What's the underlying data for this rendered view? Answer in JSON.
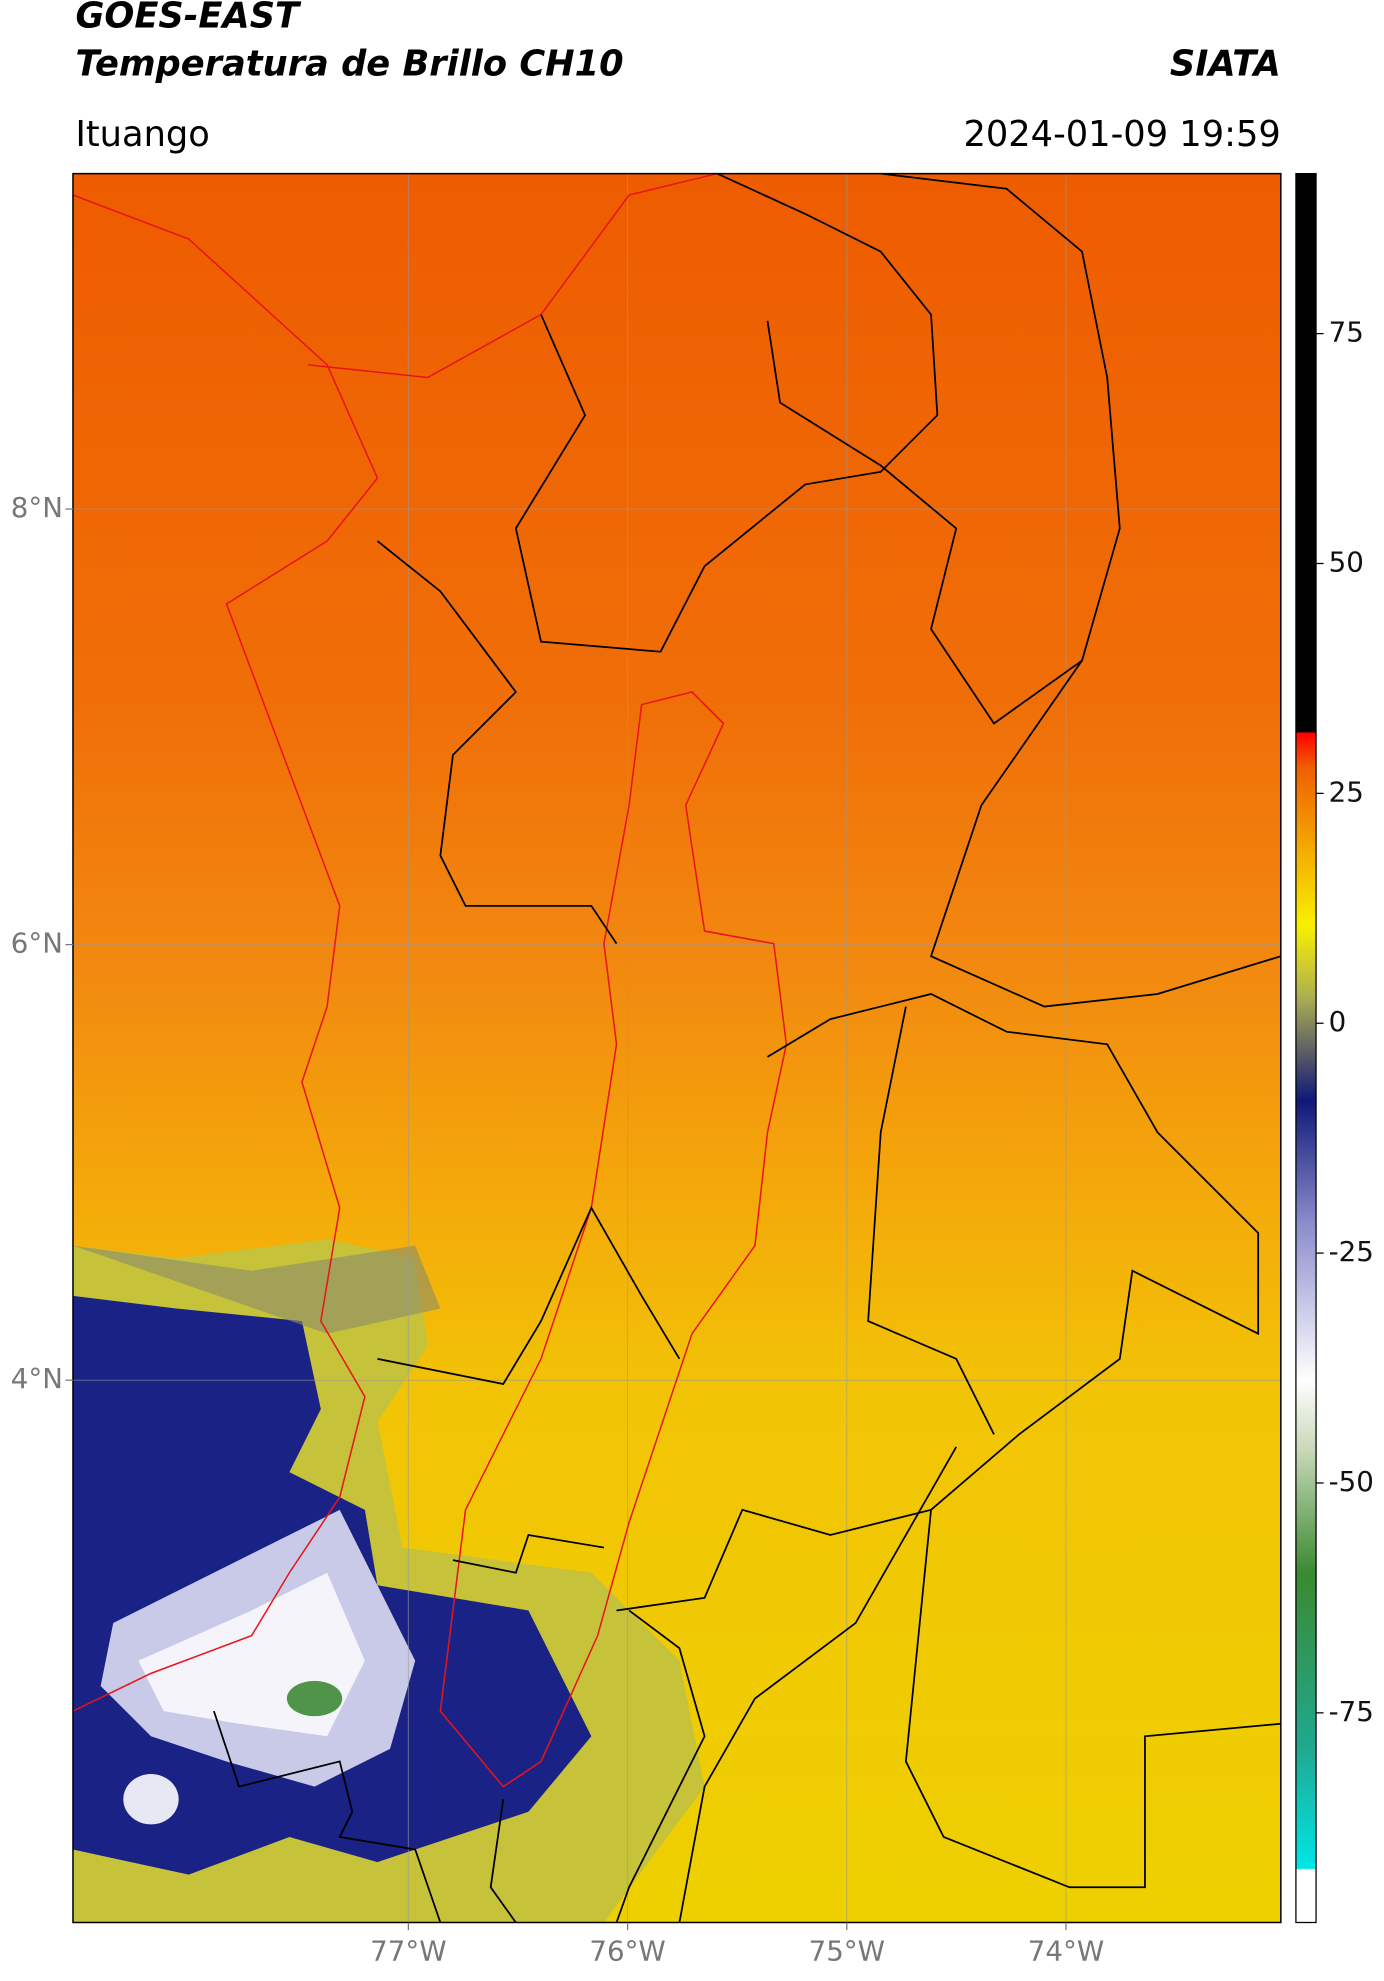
{
  "header": {
    "title": "GOES-EAST",
    "subtitle": "Temperatura de Brillo CH10",
    "source": "SIATA",
    "location": "Ituango",
    "datetime": "2024-01-09 19:59"
  },
  "map": {
    "lat_lim": [
      1.51,
      9.54
    ],
    "lon_lim": [
      -78.53,
      -73.02
    ],
    "lat_ticks": [
      {
        "value": 8,
        "label": "8°N"
      },
      {
        "value": 6,
        "label": "6°N"
      },
      {
        "value": 4,
        "label": "4°N"
      }
    ],
    "lon_ticks": [
      {
        "value": -77,
        "label": "77°W"
      },
      {
        "value": -76,
        "label": "76°W"
      },
      {
        "value": -75,
        "label": "75°W"
      },
      {
        "value": -74,
        "label": "74°W"
      }
    ]
  },
  "colorbar": {
    "lim": [
      -97.8,
      92.4
    ],
    "ticks": [
      75,
      50,
      25,
      0,
      -25,
      -50,
      -75
    ]
  }
}
